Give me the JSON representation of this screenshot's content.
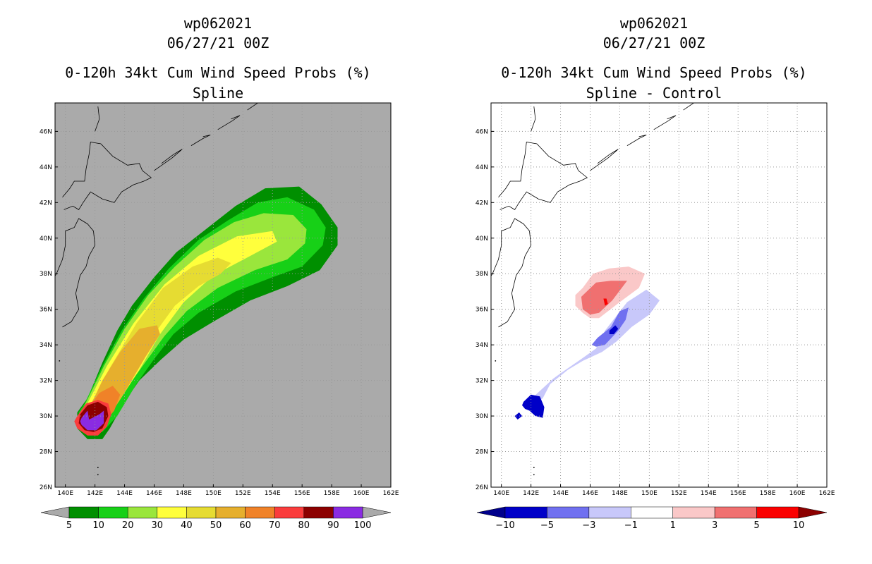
{
  "chart_data": [
    {
      "type": "heatmap",
      "storm_id": "wp062021",
      "datetime": "06/27/21 00Z",
      "title": "0-120h 34kt Cum Wind Speed Probs (%)",
      "subtitle": "Spline",
      "xlabel": "",
      "ylabel": "",
      "xlim": [
        139.3,
        162
      ],
      "ylim": [
        26,
        47.6
      ],
      "x_ticks": [
        "140E",
        "142E",
        "144E",
        "146E",
        "148E",
        "150E",
        "152E",
        "154E",
        "156E",
        "158E",
        "160E",
        "162E"
      ],
      "y_ticks": [
        "26N",
        "28N",
        "30N",
        "32N",
        "34N",
        "36N",
        "38N",
        "40N",
        "42N",
        "44N",
        "46N"
      ],
      "grid": true,
      "colorbar": {
        "labels": [
          "5",
          "10",
          "20",
          "30",
          "40",
          "50",
          "60",
          "70",
          "80",
          "90",
          "100"
        ],
        "levels": [
          5,
          10,
          20,
          30,
          40,
          50,
          60,
          70,
          80,
          90,
          100
        ],
        "colors": [
          "#008f00",
          "#17d017",
          "#9ae63c",
          "#ffff3c",
          "#e6dc32",
          "#e6af2d",
          "#f08228",
          "#fa3c3c",
          "#8c0000",
          "#8a2be2"
        ],
        "under_color": "#aaaaaa",
        "over_color": "#aaaaaa"
      },
      "contours": [
        {
          "level": 5,
          "color": "#008f00",
          "lon": [
            141.5,
            142.5,
            143.5,
            144.5,
            146,
            147.5,
            149.5,
            151.5,
            153.5,
            155.8,
            157.3,
            158.4,
            158.4,
            157.2,
            155.0,
            152.5,
            150.0,
            148.0,
            146.5,
            145.0,
            144.0,
            143.0,
            142.5,
            141.5,
            140.8,
            140.8
          ],
          "lat": [
            31.0,
            33.0,
            34.8,
            36.2,
            37.8,
            39.2,
            40.5,
            41.8,
            42.8,
            42.9,
            41.9,
            40.6,
            39.6,
            38.2,
            37.3,
            36.5,
            35.3,
            34.3,
            33.2,
            32.0,
            30.8,
            29.3,
            28.7,
            28.7,
            29.3,
            30.2
          ]
        },
        {
          "level": 10,
          "color": "#17d017",
          "lon": [
            141.3,
            142.5,
            143.8,
            145.3,
            147.0,
            149.0,
            151.0,
            153.0,
            155.0,
            156.8,
            157.6,
            157.4,
            156.0,
            154.0,
            151.5,
            149.0,
            147.3,
            146.0,
            144.8,
            143.5,
            142.5,
            141.5,
            140.9,
            140.9
          ],
          "lat": [
            30.7,
            32.8,
            34.8,
            36.6,
            38.3,
            39.9,
            41.0,
            42.0,
            42.3,
            41.6,
            40.6,
            39.6,
            38.4,
            37.8,
            37.0,
            35.8,
            34.6,
            33.2,
            31.8,
            30.0,
            29.1,
            29.0,
            29.5,
            30.2
          ]
        },
        {
          "level": 20,
          "color": "#9ae63c",
          "lon": [
            141.3,
            142.6,
            144.0,
            145.6,
            147.4,
            149.4,
            151.4,
            153.4,
            155.4,
            156.3,
            156.2,
            155.0,
            152.8,
            150.3,
            148.2,
            146.7,
            145.3,
            144.0,
            142.8,
            141.9,
            141.1,
            141.0
          ],
          "lat": [
            30.6,
            32.8,
            34.9,
            36.8,
            38.4,
            39.9,
            40.9,
            41.4,
            41.3,
            40.5,
            39.7,
            38.8,
            38.2,
            37.2,
            35.9,
            34.5,
            32.9,
            31.4,
            30.1,
            29.2,
            29.4,
            30.0
          ]
        },
        {
          "level": 30,
          "color": "#ffff3c",
          "lon": [
            141.3,
            142.8,
            144.6,
            146.7,
            149.0,
            151.6,
            154.0,
            154.3,
            152.5,
            150.0,
            148.0,
            146.4,
            145.0,
            143.6,
            142.4,
            141.5,
            141.1
          ],
          "lat": [
            30.4,
            32.8,
            35.2,
            37.4,
            39.0,
            40.1,
            40.4,
            39.8,
            39.0,
            37.9,
            36.4,
            34.6,
            32.6,
            30.8,
            29.6,
            29.3,
            29.8
          ]
        },
        {
          "level": 40,
          "color": "#e6dc32",
          "lon": [
            141.6,
            143.0,
            144.8,
            146.6,
            148.6,
            150.3,
            151.2,
            150.5,
            149.0,
            147.4,
            146.0,
            144.6,
            143.2,
            142.0,
            141.4
          ],
          "lat": [
            30.5,
            32.7,
            35.2,
            37.2,
            38.4,
            38.9,
            38.6,
            38.0,
            37.3,
            36.2,
            34.6,
            32.6,
            30.6,
            29.5,
            29.8
          ]
        },
        {
          "level": 50,
          "color": "#e6af2d",
          "lon": [
            141.6,
            142.5,
            143.7,
            145.0,
            146.2,
            146.4,
            145.4,
            144.2,
            143.0,
            142.0,
            141.4
          ],
          "lat": [
            30.4,
            32.0,
            33.6,
            34.9,
            35.1,
            34.6,
            33.3,
            31.6,
            30.0,
            29.4,
            29.8
          ]
        },
        {
          "level": 60,
          "color": "#f08228",
          "lon": [
            141.5,
            142.3,
            143.2,
            143.7,
            143.3,
            142.5,
            141.6,
            141.2
          ],
          "lat": [
            30.4,
            31.3,
            31.7,
            31.2,
            30.3,
            29.5,
            29.3,
            29.8
          ]
        },
        {
          "level": 70,
          "color": "#fa3c3c",
          "lon": [
            140.8,
            141.4,
            142.2,
            142.9,
            143.1,
            142.8,
            142.2,
            141.5,
            140.8,
            140.6
          ],
          "lat": [
            30.0,
            30.7,
            30.9,
            30.7,
            30.1,
            29.4,
            28.9,
            28.9,
            29.3,
            29.7
          ]
        },
        {
          "level": 80,
          "color": "#8c0000",
          "lon": [
            141.0,
            141.5,
            142.2,
            142.8,
            142.9,
            142.5,
            141.9,
            141.3,
            140.9
          ],
          "lat": [
            30.1,
            30.6,
            30.8,
            30.5,
            30.0,
            29.3,
            29.1,
            29.2,
            29.6
          ]
        },
        {
          "level": 90,
          "color": "#8a2be2",
          "lon": [
            141.1,
            141.5,
            141.6,
            142.3,
            142.6,
            142.6,
            142.1,
            141.5,
            141.1,
            141.0
          ],
          "lat": [
            29.9,
            30.3,
            29.8,
            30.1,
            30.3,
            29.6,
            29.2,
            29.2,
            29.5,
            29.7
          ]
        }
      ]
    },
    {
      "type": "heatmap",
      "storm_id": "wp062021",
      "datetime": "06/27/21 00Z",
      "title": "0-120h 34kt Cum Wind Speed Probs (%)",
      "subtitle": "Spline - Control",
      "xlabel": "",
      "ylabel": "",
      "xlim": [
        139.3,
        162
      ],
      "ylim": [
        26,
        47.6
      ],
      "x_ticks": [
        "140E",
        "142E",
        "144E",
        "146E",
        "148E",
        "150E",
        "152E",
        "154E",
        "156E",
        "158E",
        "160E",
        "162E"
      ],
      "y_ticks": [
        "26N",
        "28N",
        "30N",
        "32N",
        "34N",
        "36N",
        "38N",
        "40N",
        "42N",
        "44N",
        "46N"
      ],
      "grid": true,
      "colorbar": {
        "labels": [
          "-10",
          "-5",
          "-3",
          "-1",
          "1",
          "3",
          "5",
          "10"
        ],
        "levels": [
          -10,
          -5,
          -3,
          -1,
          1,
          3,
          5,
          10
        ],
        "colors": [
          "#0000c8",
          "#7070f0",
          "#c8c8fa",
          "#ffffff",
          "#fac8c8",
          "#f07070",
          "#fa0000"
        ],
        "under_color": "#00008c",
        "over_color": "#8c0000"
      },
      "contours": [
        {
          "level": 1,
          "color": "#fac8c8",
          "lon": [
            145.5,
            146.2,
            147.3,
            148.6,
            149.7,
            149.3,
            148.0,
            146.6,
            146.0,
            145.5,
            145.0,
            145.0
          ],
          "lat": [
            37.2,
            38.0,
            38.3,
            38.4,
            38.0,
            37.2,
            36.4,
            35.5,
            35.5,
            35.8,
            36.2,
            36.8
          ]
        },
        {
          "level": 3,
          "color": "#f07070",
          "lon": [
            145.4,
            146.4,
            147.4,
            148.0,
            148.5,
            147.5,
            146.6,
            146.0,
            145.5
          ],
          "lat": [
            36.7,
            37.5,
            37.6,
            37.6,
            37.6,
            36.5,
            35.8,
            35.7,
            36.0
          ]
        },
        {
          "level": 5,
          "color": "#fa0000",
          "lon": [
            146.9,
            147.1,
            147.2,
            147.0
          ],
          "lat": [
            36.6,
            36.6,
            36.3,
            36.2
          ]
        },
        {
          "level": -1,
          "color": "#c8c8fa",
          "lon": [
            147.0,
            148.5,
            149.8,
            150.7,
            150.0,
            148.8,
            147.8,
            146.8,
            145.5,
            144.5,
            143.3,
            142.8,
            142.0,
            142.2,
            143.5,
            144.0,
            145.4,
            146.4
          ],
          "lat": [
            34.8,
            36.4,
            37.1,
            36.5,
            35.7,
            35.0,
            34.2,
            33.6,
            33.1,
            32.6,
            31.8,
            31.0,
            30.5,
            31.1,
            32.1,
            32.4,
            33.2,
            33.8
          ]
        },
        {
          "level": -3,
          "color": "#7070f0",
          "lon": [
            146.5,
            147.4,
            148.0,
            148.6,
            148.4,
            147.9,
            147.0,
            146.4,
            146.1
          ],
          "lat": [
            34.4,
            35.0,
            35.9,
            36.1,
            35.4,
            34.8,
            34.0,
            33.9,
            34.0
          ]
        },
        {
          "level": -5,
          "color": "#0000c8",
          "lon": [
            147.3,
            147.7,
            147.9,
            147.6,
            147.3
          ],
          "lat": [
            34.8,
            35.1,
            34.9,
            34.6,
            34.6
          ]
        },
        {
          "level": -5,
          "color": "#0000c8",
          "lon": [
            141.5,
            142.0,
            142.6,
            142.9,
            142.8,
            142.3,
            141.9,
            141.6,
            141.4
          ],
          "lat": [
            30.8,
            31.2,
            31.1,
            30.5,
            29.9,
            30.0,
            30.3,
            30.4,
            30.6
          ]
        },
        {
          "level": -5,
          "color": "#0000c8",
          "lon": [
            140.9,
            141.2,
            141.4,
            141.1
          ],
          "lat": [
            30.0,
            30.2,
            30.0,
            29.8
          ]
        }
      ]
    }
  ]
}
